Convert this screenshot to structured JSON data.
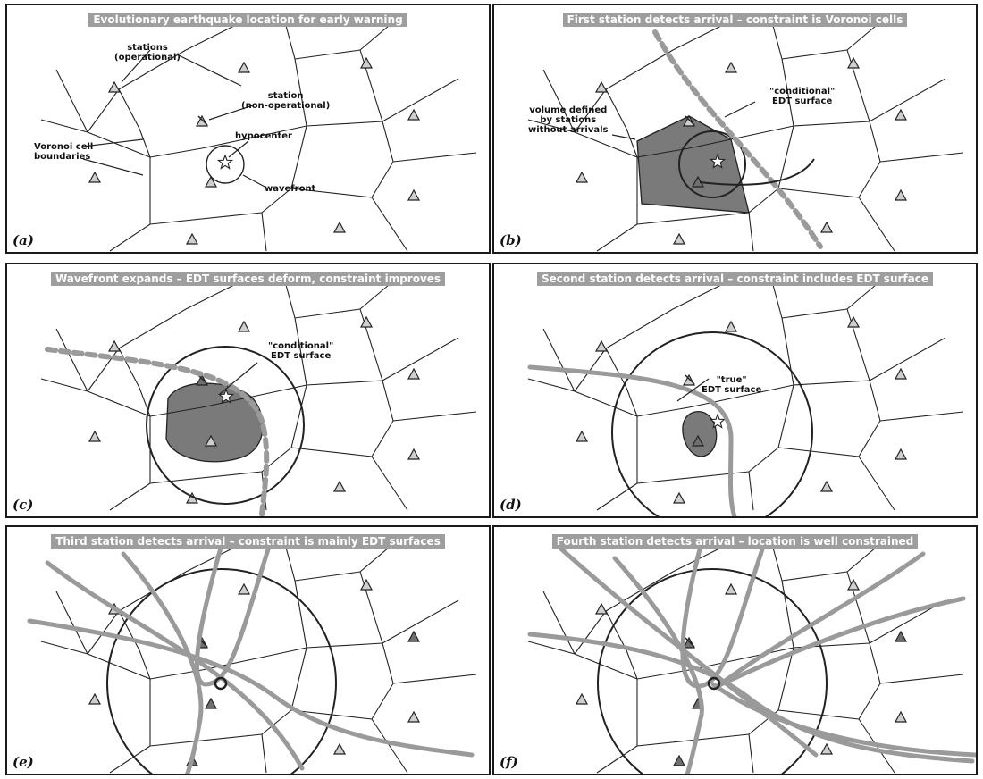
{
  "panels": [
    {
      "id": "a",
      "title": "Evolutionary earthquake location for early warning",
      "label": "(a)",
      "annotations": {
        "stations_operational": "stations\n(operational)",
        "station_non_operational": "station\n(non-operational)",
        "voronoi": "Voronoi cell\nboundaries",
        "hypocenter": "hypocenter",
        "wavefront": "wavefront"
      }
    },
    {
      "id": "b",
      "title": "First station detects arrival – constraint is Voronoi cells",
      "label": "(b)",
      "annotations": {
        "volume": "volume defined\nby stations\nwithout arrivals",
        "edt": "\"conditional\"\nEDT surface"
      }
    },
    {
      "id": "c",
      "title": "Wavefront expands – EDT surfaces deform, constraint improves",
      "label": "(c)",
      "annotations": {
        "edt": "\"conditional\"\nEDT surface"
      }
    },
    {
      "id": "d",
      "title": "Second station detects arrival – constraint includes EDT surface",
      "label": "(d)",
      "annotations": {
        "edt": "\"true\"\nEDT surface"
      }
    },
    {
      "id": "e",
      "title": "Third station detects arrival – constraint is mainly EDT surfaces",
      "label": "(e)",
      "annotations": {}
    },
    {
      "id": "f",
      "title": "Fourth station detects arrival – location is well constrained",
      "label": "(f)",
      "annotations": {}
    }
  ],
  "colors": {
    "station_fill": "#cfcfcf",
    "station_triggered_fill": "#6f6f6f",
    "region_fill": "#7a7a7a",
    "edt_curve": "#9a9a9a",
    "line": "#222222",
    "title_bg": "#9e9e9e"
  }
}
